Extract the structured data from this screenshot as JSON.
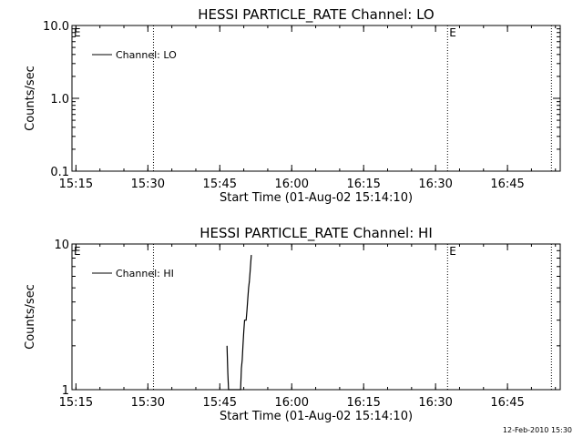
{
  "footer": {
    "timestamp": "12-Feb-2010 15:30"
  },
  "chart_data": [
    {
      "type": "line",
      "title": "HESSI PARTICLE_RATE Channel: LO",
      "xlabel": "Start Time (01-Aug-02 15:14:10)",
      "ylabel": "Counts/sec",
      "yscale": "log",
      "ylim": [
        0.1,
        10.0
      ],
      "yticks": [
        0.1,
        1.0,
        10.0
      ],
      "ytick_labels": [
        "0.1",
        "1.0",
        "10.0"
      ],
      "xlim": [
        "15:14:10",
        "16:56:00"
      ],
      "xticks": [
        "15:15",
        "15:30",
        "15:45",
        "16:00",
        "16:15",
        "16:30",
        "16:45"
      ],
      "legend": {
        "position": "top-left",
        "entries": [
          "Channel: LO"
        ]
      },
      "markers": [
        {
          "time": "15:31:10",
          "label": ""
        },
        {
          "time": "16:32:30",
          "label": "E"
        },
        {
          "time": "16:54:10",
          "label": ""
        }
      ],
      "edge_label": "E",
      "series": [
        {
          "name": "Channel: LO",
          "points": []
        }
      ]
    },
    {
      "type": "line",
      "title": "HESSI PARTICLE_RATE Channel: HI",
      "xlabel": "Start Time (01-Aug-02 15:14:10)",
      "ylabel": "Counts/sec",
      "yscale": "log",
      "ylim": [
        1,
        10
      ],
      "yticks": [
        1,
        10
      ],
      "ytick_labels": [
        "1",
        "10"
      ],
      "xlim": [
        "15:14:10",
        "16:56:00"
      ],
      "xticks": [
        "15:15",
        "15:30",
        "15:45",
        "16:00",
        "16:15",
        "16:30",
        "16:45"
      ],
      "legend": {
        "position": "top-left",
        "entries": [
          "Channel: HI"
        ]
      },
      "markers": [
        {
          "time": "15:31:10",
          "label": ""
        },
        {
          "time": "16:32:30",
          "label": "E"
        },
        {
          "time": "16:54:10",
          "label": ""
        }
      ],
      "edge_label": "E",
      "series": [
        {
          "name": "Channel: HI",
          "points": [
            [
              "15:46:30",
              2.0
            ],
            [
              "15:46:40",
              1.3
            ],
            [
              "15:46:50",
              1.0
            ],
            [
              "15:49:20",
              1.0
            ],
            [
              "15:49:30",
              1.4
            ],
            [
              "15:49:40",
              1.6
            ],
            [
              "15:49:50",
              2.0
            ],
            [
              "15:50:00",
              2.5
            ],
            [
              "15:50:10",
              3.0
            ],
            [
              "15:50:20",
              3.0
            ],
            [
              "15:50:30",
              3.0
            ],
            [
              "15:50:40",
              3.5
            ],
            [
              "15:50:50",
              4.2
            ],
            [
              "15:51:00",
              5.0
            ],
            [
              "15:51:10",
              5.5
            ],
            [
              "15:51:20",
              6.5
            ],
            [
              "15:51:30",
              7.8
            ],
            [
              "15:51:35",
              8.4
            ]
          ]
        }
      ]
    }
  ]
}
